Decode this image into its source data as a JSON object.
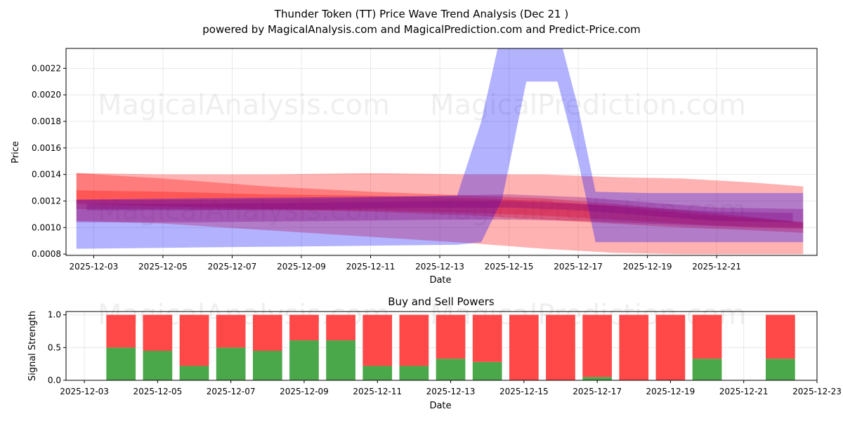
{
  "title_line1": "Thunder Token (TT) Price Wave Trend Analysis (Dec 21 )",
  "title_line2": "powered by MagicalAnalysis.com and MagicalPrediction.com and Predict-Price.com",
  "watermarks": {
    "left": "MagicalAnalysis.com",
    "right": "MagicalPrediction.com"
  },
  "colors": {
    "sell": "#ff0000",
    "buy_band": "#0000ff",
    "buy_bar": "#2ca02c",
    "sell_bar": "#ff0000"
  },
  "chart_data": [
    {
      "type": "area",
      "title": "",
      "xlabel": "Date",
      "ylabel": "Price",
      "x_start": "2025-12-02",
      "xlim_days": [
        0.2,
        21.9
      ],
      "ylim": [
        0.00079,
        0.00235
      ],
      "y_ticks": [
        0.0008,
        0.001,
        0.0012,
        0.0014,
        0.0016,
        0.0018,
        0.002,
        0.0022
      ],
      "y_tick_labels": [
        "0.0008",
        "0.0010",
        "0.0012",
        "0.0014",
        "0.0016",
        "0.0018",
        "0.0020",
        "0.0022"
      ],
      "x_ticks_days": [
        1,
        3,
        5,
        7,
        9,
        11,
        13,
        15,
        17,
        19
      ],
      "x_tick_labels": [
        "2025-12-03",
        "2025-12-05",
        "2025-12-07",
        "2025-12-09",
        "2025-12-11",
        "2025-12-13",
        "2025-12-15",
        "2025-12-17",
        "2025-12-19",
        "2025-12-21"
      ],
      "grid": true,
      "series": [
        {
          "name": "red band outer",
          "color": "#ff0000",
          "opacity": 0.3,
          "x": [
            0.5,
            3,
            6,
            9,
            12,
            14,
            16,
            18,
            20,
            21.5
          ],
          "upper": [
            0.00141,
            0.0014,
            0.0014,
            0.00141,
            0.0014,
            0.0014,
            0.00138,
            0.00137,
            0.00134,
            0.00131
          ],
          "lower": [
            0.00105,
            0.00103,
            0.00098,
            0.00093,
            0.00088,
            0.00084,
            0.00081,
            0.0008,
            0.0008,
            0.0008
          ]
        },
        {
          "name": "red band mid",
          "color": "#ff0000",
          "opacity": 0.3,
          "x": [
            0.5,
            3,
            6,
            9,
            12,
            14,
            16,
            18,
            20,
            21.5
          ],
          "upper": [
            0.00141,
            0.00137,
            0.00131,
            0.00127,
            0.00124,
            0.00122,
            0.00118,
            0.00113,
            0.00108,
            0.00104
          ],
          "lower": [
            0.00118,
            0.00116,
            0.00114,
            0.00112,
            0.00109,
            0.00106,
            0.00103,
            0.001,
            0.00098,
            0.00096
          ]
        },
        {
          "name": "red band inner",
          "color": "#ff0000",
          "opacity": 0.3,
          "x": [
            0.5,
            3,
            6,
            9,
            12,
            14,
            16,
            18,
            20,
            21.5
          ],
          "upper": [
            0.00128,
            0.00127,
            0.00125,
            0.00124,
            0.00122,
            0.0012,
            0.00116,
            0.00111,
            0.00107,
            0.00104
          ],
          "lower": [
            0.00114,
            0.00114,
            0.00113,
            0.00113,
            0.00111,
            0.00109,
            0.00106,
            0.00103,
            0.001,
            0.00099
          ]
        },
        {
          "name": "blue spike band",
          "color": "#0000ff",
          "opacity": 0.3,
          "x": [
            0.5,
            4,
            8,
            11.5,
            12.2,
            12.8,
            13.5,
            14.4,
            15,
            15.5,
            17,
            19,
            21.5
          ],
          "upper": [
            0.00121,
            0.00122,
            0.00123,
            0.00124,
            0.0018,
            0.0025,
            0.0025,
            0.0025,
            0.0019,
            0.00127,
            0.00126,
            0.00126,
            0.00126
          ],
          "lower": [
            0.00084,
            0.00085,
            0.00086,
            0.00087,
            0.00089,
            0.00121,
            0.0021,
            0.0021,
            0.0015,
            0.00089,
            0.00089,
            0.00089,
            0.00089
          ]
        },
        {
          "name": "purple band outer",
          "color": "#800080",
          "opacity": 0.3,
          "x": [
            0.5,
            4,
            8,
            11,
            13,
            15,
            17,
            19,
            21.5
          ],
          "upper": [
            0.00121,
            0.00121,
            0.00122,
            0.00124,
            0.00125,
            0.00123,
            0.00119,
            0.00115,
            0.00114
          ],
          "lower": [
            0.00104,
            0.00104,
            0.00105,
            0.00106,
            0.00106,
            0.00105,
            0.00103,
            0.00101,
            0.001
          ]
        },
        {
          "name": "purple band inner",
          "color": "#800080",
          "opacity": 0.3,
          "x": [
            0.8,
            4,
            8,
            11,
            13,
            15,
            17,
            19,
            21.2
          ],
          "upper": [
            0.00118,
            0.00118,
            0.00119,
            0.0012,
            0.0012,
            0.00118,
            0.00115,
            0.00112,
            0.00111
          ],
          "lower": [
            0.00113,
            0.00113,
            0.00114,
            0.00115,
            0.00115,
            0.00113,
            0.00109,
            0.00105,
            0.00104
          ]
        }
      ]
    },
    {
      "type": "bar",
      "title": "Buy and Sell Powers",
      "xlabel": "Date",
      "ylabel": "Signal Strength",
      "x_start": "2025-12-03",
      "xlim_days": [
        -0.5,
        20
      ],
      "ylim": [
        0,
        1.05
      ],
      "y_ticks": [
        0,
        0.5,
        1
      ],
      "y_tick_labels": [
        "0.0",
        "0.5",
        "1.0"
      ],
      "x_ticks_days": [
        0,
        2,
        4,
        6,
        8,
        10,
        12,
        14,
        16,
        18,
        20
      ],
      "x_tick_labels": [
        "2025-12-03",
        "2025-12-05",
        "2025-12-07",
        "2025-12-09",
        "2025-12-11",
        "2025-12-13",
        "2025-12-15",
        "2025-12-17",
        "2025-12-19",
        "2025-12-21",
        "2025-12-23"
      ],
      "grid": true,
      "categories": [
        "2025-12-04",
        "2025-12-05",
        "2025-12-06",
        "2025-12-07",
        "2025-12-08",
        "2025-12-09",
        "2025-12-10",
        "2025-12-11",
        "2025-12-12",
        "2025-12-13",
        "2025-12-14",
        "2025-12-15",
        "2025-12-16",
        "2025-12-17",
        "2025-12-18",
        "2025-12-19",
        "2025-12-20",
        "2025-12-22"
      ],
      "x_days": [
        1,
        2,
        3,
        4,
        5,
        6,
        7,
        8,
        9,
        10,
        11,
        12,
        13,
        14,
        15,
        16,
        17,
        19
      ],
      "series": [
        {
          "name": "Buy",
          "color": "#4aa84a",
          "values": [
            0.5,
            0.45,
            0.22,
            0.5,
            0.45,
            0.61,
            0.61,
            0.22,
            0.22,
            0.33,
            0.28,
            0,
            0,
            0.05,
            0,
            0,
            0.33,
            0.33
          ]
        },
        {
          "name": "Sell",
          "color": "#ff4848",
          "values": [
            0.5,
            0.55,
            0.78,
            0.5,
            0.55,
            0.39,
            0.39,
            0.78,
            0.78,
            0.67,
            0.72,
            1,
            1,
            0.95,
            1,
            1,
            0.67,
            0.67
          ]
        }
      ]
    }
  ]
}
